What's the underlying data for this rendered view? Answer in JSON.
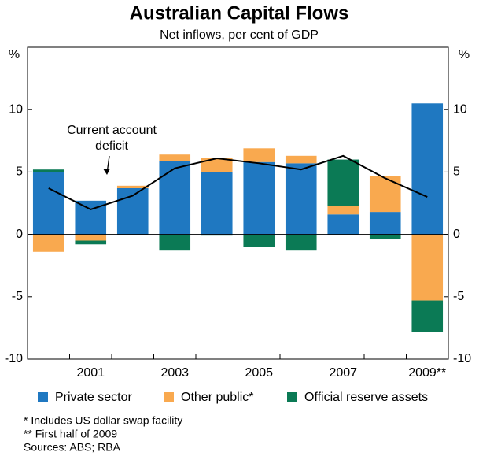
{
  "chart_data": {
    "type": "bar",
    "title": "Australian Capital Flows",
    "subtitle": "Net inflows, per cent of GDP",
    "y_axis_label": "%",
    "y2_axis_label": "%",
    "categories": [
      null,
      "2001",
      null,
      "2003",
      null,
      "2005",
      null,
      "2007",
      null,
      "2009**"
    ],
    "series": [
      {
        "name": "Private sector",
        "color": "#1f78c1",
        "values": [
          5.0,
          2.7,
          3.7,
          5.9,
          5.0,
          5.8,
          5.7,
          1.6,
          1.8,
          10.5
        ]
      },
      {
        "name": "Other public*",
        "color": "#f9a94f",
        "values": [
          -1.4,
          -0.5,
          0.2,
          0.5,
          1.1,
          1.1,
          0.6,
          0.7,
          2.9,
          -5.3
        ]
      },
      {
        "name": "Official reserve assets",
        "color": "#0b7a55",
        "values": [
          0.2,
          -0.3,
          0.0,
          -1.3,
          -0.1,
          -1.0,
          -1.3,
          3.7,
          -0.4,
          -2.5
        ]
      }
    ],
    "line": {
      "name": "Current account deficit",
      "color": "#000000",
      "values": [
        3.7,
        2.0,
        3.1,
        5.3,
        6.1,
        5.7,
        5.2,
        6.3,
        4.5,
        3.0
      ]
    },
    "annotation": [
      "Current account",
      "deficit"
    ],
    "ylim": [
      -10,
      15
    ],
    "yticks": [
      -10,
      -5,
      0,
      5,
      10
    ],
    "y2lim": [
      -10,
      15
    ],
    "y2ticks": [
      -10,
      -5,
      0,
      5,
      10
    ],
    "footnotes": [
      "*   Includes US dollar swap facility",
      "**  First half of 2009",
      "Sources: ABS; RBA"
    ]
  }
}
